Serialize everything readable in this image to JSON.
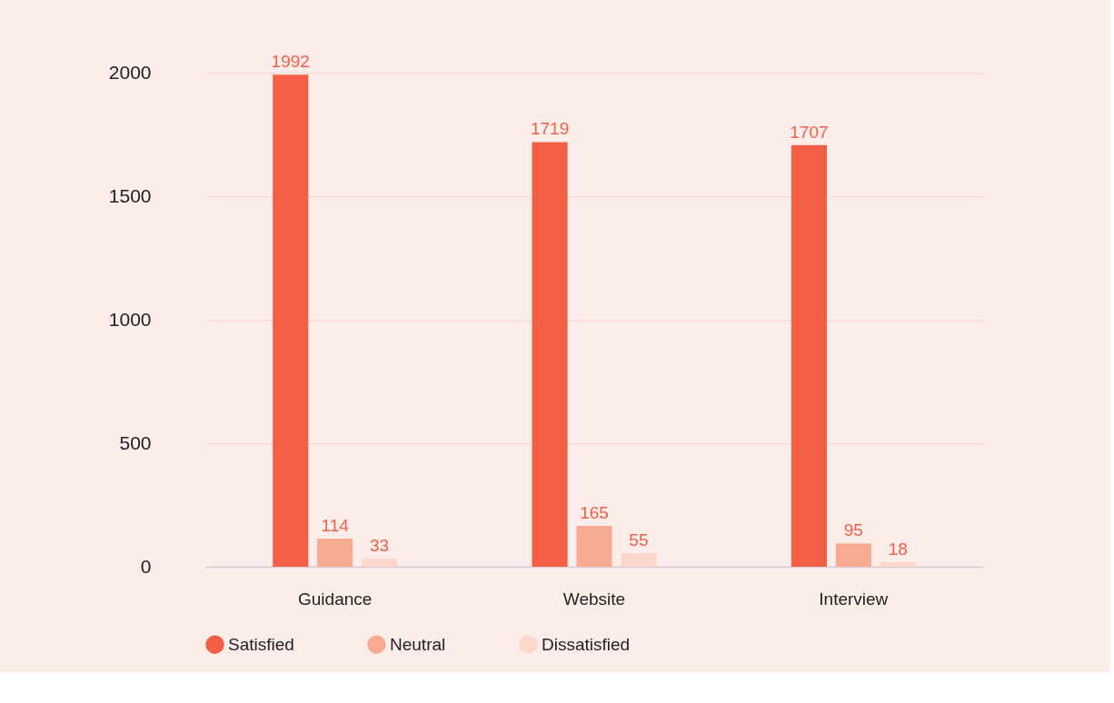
{
  "chart_data": {
    "type": "bar",
    "categories": [
      "Guidance",
      "Website",
      "Interview"
    ],
    "series": [
      {
        "name": "Satisfied",
        "color": "#f25f45",
        "values": [
          1992,
          1719,
          1707
        ]
      },
      {
        "name": "Neutral",
        "color": "#f7ab91",
        "values": [
          114,
          165,
          95
        ]
      },
      {
        "name": "Dissatisfied",
        "color": "#fbd8c9",
        "values": [
          33,
          55,
          18
        ]
      }
    ],
    "ylim": [
      0,
      2000
    ],
    "yticks": [
      0,
      500,
      1000,
      1500,
      2000
    ],
    "grid": "y",
    "legend": "bottom",
    "data_labels": true
  }
}
